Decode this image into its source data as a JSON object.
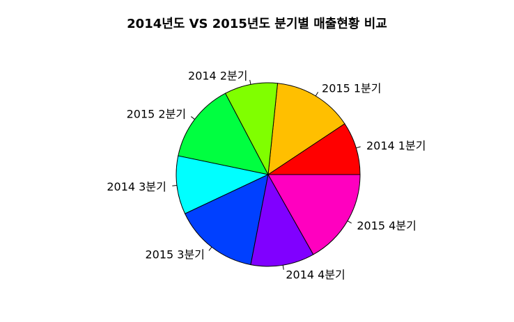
{
  "chart_data": {
    "type": "pie",
    "title": "2014년도 VS 2015년도 분기별 매출현황 비교",
    "slices": [
      {
        "label": "2014 1분기",
        "value": 10,
        "color": "#FF0000"
      },
      {
        "label": "2015 1분기",
        "value": 15,
        "color": "#FFBF00"
      },
      {
        "label": "2014 2분기",
        "value": 10,
        "color": "#80FF00"
      },
      {
        "label": "2015 2분기",
        "value": 15,
        "color": "#00FF40"
      },
      {
        "label": "2014 3분기",
        "value": 11,
        "color": "#00FFFF"
      },
      {
        "label": "2015 3분기",
        "value": 16,
        "color": "#0040FF"
      },
      {
        "label": "2014 4분기",
        "value": 12,
        "color": "#8000FF"
      },
      {
        "label": "2015 4분기",
        "value": 18,
        "color": "#FF00BF"
      }
    ],
    "direction": "counterclockwise",
    "start": "3 o'clock"
  }
}
